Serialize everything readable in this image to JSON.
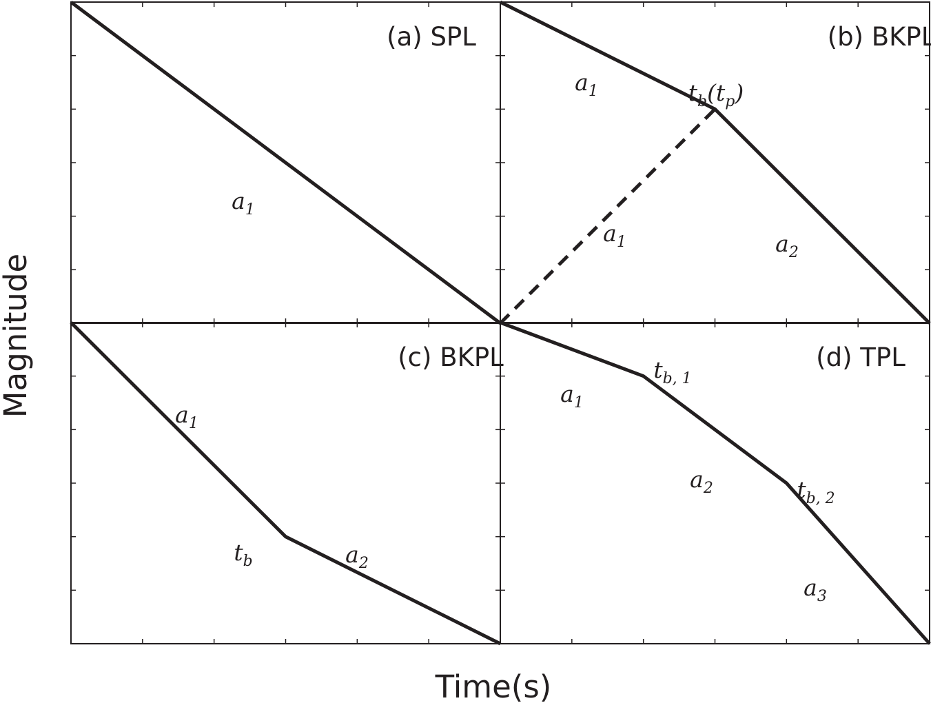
{
  "figure": {
    "xlabel": "Time(s)",
    "ylabel": "Magnitude"
  },
  "chart_data": [
    {
      "type": "line",
      "title": "(a) SPL",
      "xlim": [
        0,
        6
      ],
      "ylim": [
        0,
        6
      ],
      "series": [
        {
          "x": [
            0,
            6
          ],
          "values": [
            6,
            0
          ],
          "color": "#231f20",
          "linestyle": "solid"
        }
      ],
      "annotations": [
        {
          "runs": [
            [
              "a",
              "1"
            ]
          ]
        }
      ]
    },
    {
      "type": "line",
      "title": "(b) BKPL",
      "xlim": [
        0,
        6
      ],
      "ylim": [
        0,
        6
      ],
      "series": [
        {
          "x": [
            0,
            3,
            6
          ],
          "values": [
            6,
            4,
            0
          ],
          "color": "#231f20",
          "linestyle": "solid"
        },
        {
          "x": [
            0,
            3
          ],
          "values": [
            0,
            4
          ],
          "color": "#231f20",
          "linestyle": "dashed"
        }
      ],
      "annotations": [
        {
          "runs": [
            [
              "a",
              "1"
            ]
          ]
        },
        {
          "runs": [
            [
              "t",
              "b"
            ],
            [
              "(t",
              "p"
            ],
            [
              ")"
            ]
          ]
        },
        {
          "runs": [
            [
              "a",
              "1"
            ]
          ]
        },
        {
          "runs": [
            [
              "a",
              "2"
            ]
          ]
        }
      ]
    },
    {
      "type": "line",
      "title": "(c) BKPL",
      "xlim": [
        0,
        6
      ],
      "ylim": [
        0,
        6
      ],
      "series": [
        {
          "x": [
            0,
            3,
            6
          ],
          "values": [
            6,
            2,
            0
          ],
          "color": "#231f20",
          "linestyle": "solid"
        }
      ],
      "annotations": [
        {
          "runs": [
            [
              "a",
              "1"
            ]
          ]
        },
        {
          "runs": [
            [
              "t",
              "b"
            ]
          ]
        },
        {
          "runs": [
            [
              "a",
              "2"
            ]
          ]
        }
      ]
    },
    {
      "type": "line",
      "title": "(d) TPL",
      "xlim": [
        0,
        6
      ],
      "ylim": [
        0,
        6
      ],
      "series": [
        {
          "x": [
            0,
            2,
            4,
            6
          ],
          "values": [
            6,
            5,
            3,
            0
          ],
          "color": "#231f20",
          "linestyle": "solid"
        }
      ],
      "annotations": [
        {
          "runs": [
            [
              "a",
              "1"
            ]
          ]
        },
        {
          "runs": [
            [
              "t",
              "b, 1"
            ]
          ]
        },
        {
          "runs": [
            [
              "a",
              "2"
            ]
          ]
        },
        {
          "runs": [
            [
              "t",
              "b, 2"
            ]
          ]
        },
        {
          "runs": [
            [
              "a",
              "3"
            ]
          ]
        }
      ]
    }
  ]
}
